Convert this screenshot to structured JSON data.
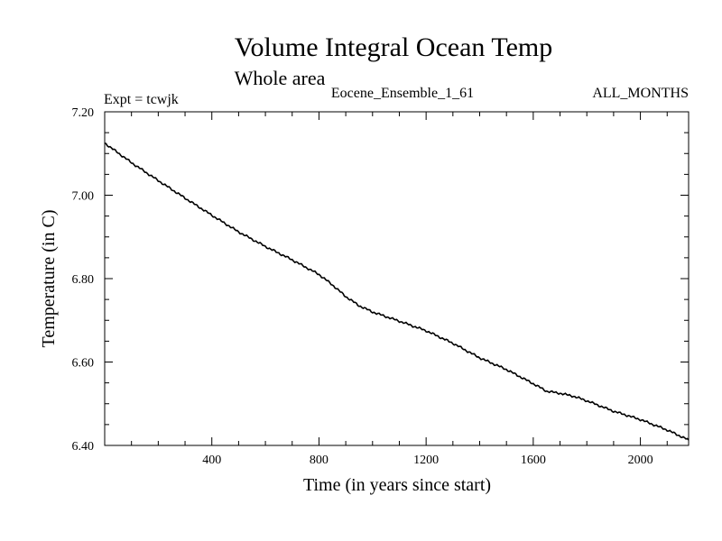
{
  "chart_data": {
    "type": "line",
    "title": "Volume Integral Ocean Temp",
    "subtitle": "Whole area",
    "header_left": "Expt = tcwjk",
    "header_center": "Eocene_Ensemble_1_61",
    "header_right": "ALL_MONTHS",
    "xlabel": "Time (in years since start)",
    "ylabel": "Temperature (in C)",
    "xlim": [
      0,
      2180
    ],
    "ylim": [
      6.4,
      7.2
    ],
    "x_ticks": [
      400,
      800,
      1200,
      1600,
      2000
    ],
    "x_tick_labels": [
      "400",
      "800",
      "1200",
      "1600",
      "2000"
    ],
    "y_ticks": [
      6.4,
      6.6,
      6.8,
      7.0,
      7.2
    ],
    "y_tick_labels": [
      "6.40",
      "6.60",
      "6.80",
      "7.00",
      "7.20"
    ],
    "grid": false,
    "line_color": "#000000",
    "series": [
      {
        "x": [
          0,
          100,
          200,
          300,
          400,
          500,
          600,
          700,
          800,
          850,
          900,
          950,
          1000,
          1100,
          1200,
          1300,
          1400,
          1500,
          1600,
          1650,
          1700,
          1750,
          1800,
          1900,
          2000,
          2100,
          2180
        ],
        "y": [
          7.125,
          7.078,
          7.035,
          6.993,
          6.952,
          6.912,
          6.877,
          6.845,
          6.81,
          6.785,
          6.757,
          6.735,
          6.72,
          6.698,
          6.675,
          6.645,
          6.61,
          6.582,
          6.548,
          6.53,
          6.525,
          6.518,
          6.507,
          6.482,
          6.462,
          6.437,
          6.413
        ]
      }
    ]
  }
}
